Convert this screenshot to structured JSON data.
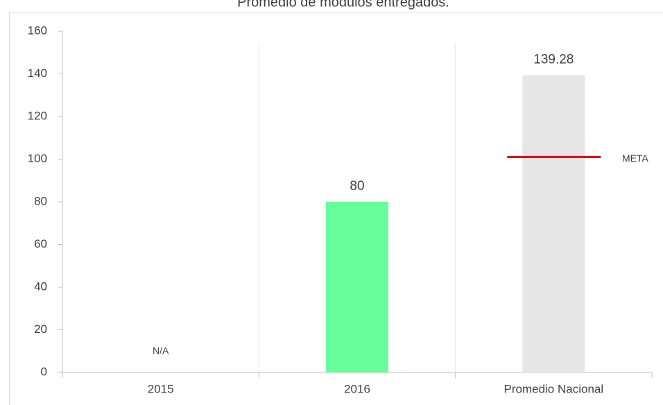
{
  "chart_data": {
    "type": "bar",
    "title": "Promedio de módulos entregados.",
    "categories": [
      "2015",
      "2016",
      "Promedio Nacional"
    ],
    "values": [
      null,
      80,
      139.28
    ],
    "value_labels": [
      "N/A",
      "80",
      "139.28"
    ],
    "colors": [
      null,
      "#66ff99",
      "#e6e6e6"
    ],
    "ylim": [
      0,
      160
    ],
    "yticks": [
      0,
      20,
      40,
      60,
      80,
      100,
      120,
      140,
      160
    ],
    "reference_line": {
      "label": "META",
      "value": 101,
      "color": "#e00000"
    }
  }
}
